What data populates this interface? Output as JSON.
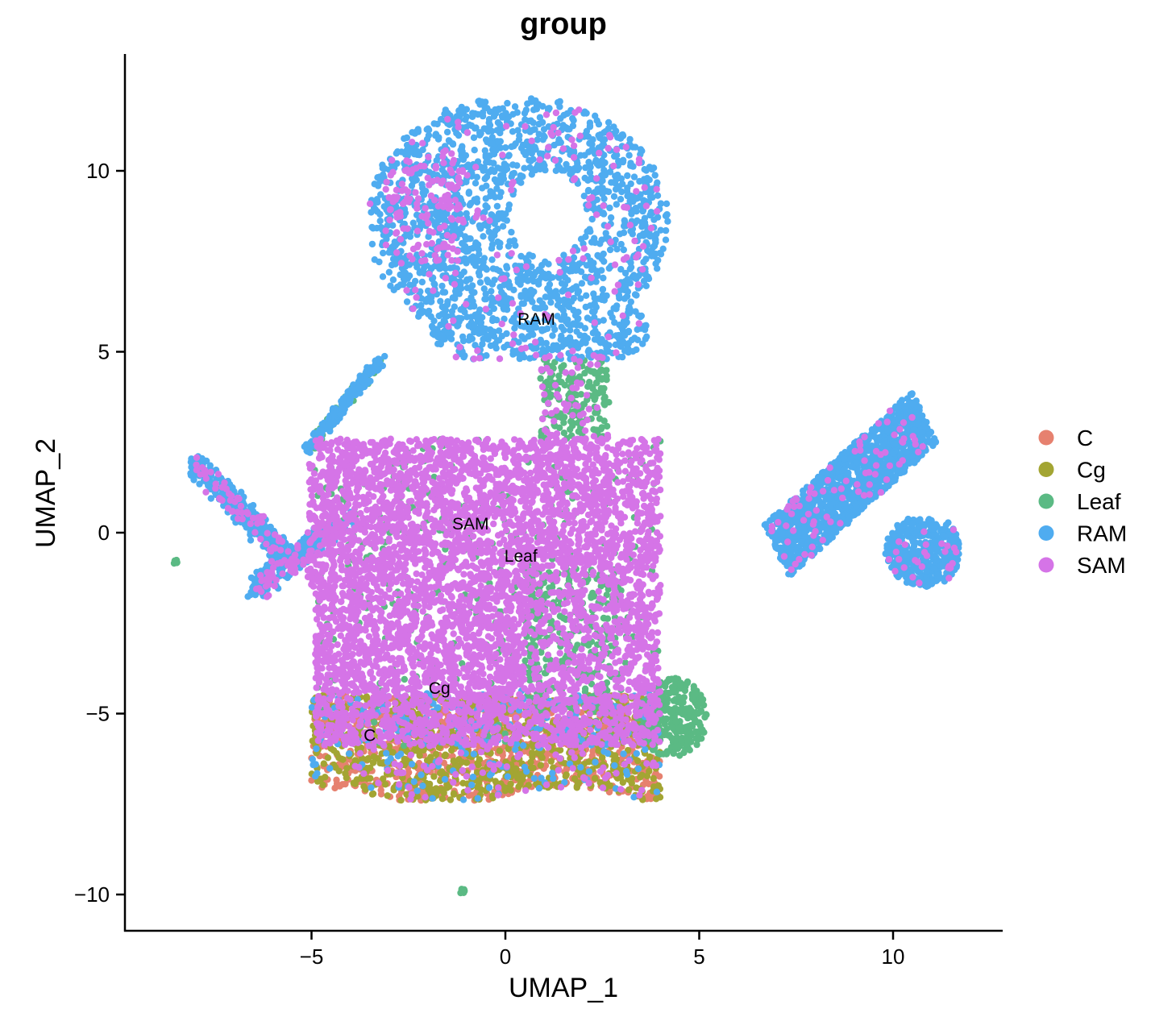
{
  "chart_data": {
    "type": "scatter",
    "title": "group",
    "xlabel": "UMAP_1",
    "ylabel": "UMAP_2",
    "xlim": [
      -9.6,
      13.0
    ],
    "ylim": [
      -11.0,
      13.2
    ],
    "x_ticks": [
      -5,
      0,
      5,
      10
    ],
    "x_tick_labels": [
      "−5",
      "0",
      "5",
      "10"
    ],
    "y_ticks": [
      -10,
      -5,
      0,
      5,
      10
    ],
    "y_tick_labels": [
      "−10",
      "−5",
      "0",
      "5",
      "10"
    ],
    "grid": false,
    "legend_position": "right",
    "series": [
      {
        "name": "C",
        "color": "#E6816F"
      },
      {
        "name": "Cg",
        "color": "#A3A533"
      },
      {
        "name": "Leaf",
        "color": "#5BBA84"
      },
      {
        "name": "RAM",
        "color": "#4FACF0"
      },
      {
        "name": "SAM",
        "color": "#D574E7"
      }
    ],
    "cluster_labels": [
      {
        "text": "RAM",
        "x": 0.8,
        "y": 5.9
      },
      {
        "text": "SAM",
        "x": -0.9,
        "y": 0.25
      },
      {
        "text": "Leaf",
        "x": 0.4,
        "y": -0.65
      },
      {
        "text": "Cg",
        "x": -1.7,
        "y": -4.3
      },
      {
        "text": "C",
        "x": -3.5,
        "y": -5.6
      }
    ]
  }
}
